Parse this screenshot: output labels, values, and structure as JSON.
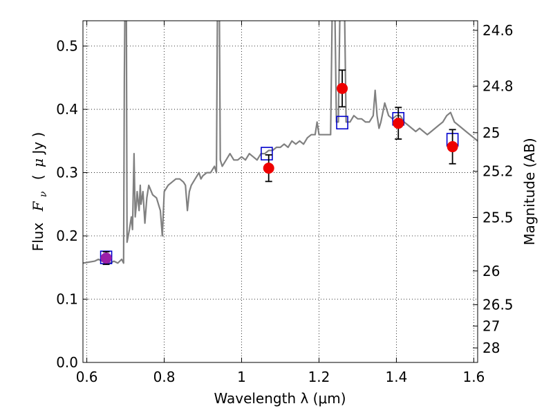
{
  "chart_data": {
    "type": "scatter",
    "xlabel": "Wavelength  λ (μm)",
    "ylabel_text": "Flux",
    "ylabel_math": "F",
    "ylabel_sub": "ν",
    "ylabel_unit_open": "(",
    "ylabel_unit_mu": "μ",
    "ylabel_unit": "Jy )",
    "y2label": "Magnitude (AB)",
    "xlim": [
      0.59,
      1.61
    ],
    "ylim": [
      0.0,
      0.54
    ],
    "grid": true,
    "x_ticks": [
      {
        "value": 0.6,
        "label": "0.6"
      },
      {
        "value": 0.8,
        "label": "0.8"
      },
      {
        "value": 1.0,
        "label": "1"
      },
      {
        "value": 1.2,
        "label": "1.2"
      },
      {
        "value": 1.4,
        "label": "1.4"
      },
      {
        "value": 1.6,
        "label": "1.6"
      }
    ],
    "y_ticks": [
      {
        "value": 0.0,
        "label": "0.0"
      },
      {
        "value": 0.1,
        "label": "0.1"
      },
      {
        "value": 0.2,
        "label": "0.2"
      },
      {
        "value": 0.3,
        "label": "0.3"
      },
      {
        "value": 0.4,
        "label": "0.4"
      },
      {
        "value": 0.5,
        "label": "0.5"
      }
    ],
    "y2_ticks": [
      {
        "mag": 24.6,
        "label": "24.6"
      },
      {
        "mag": 24.8,
        "label": "24.8"
      },
      {
        "mag": 25.0,
        "label": "25"
      },
      {
        "mag": 25.2,
        "label": "25.2"
      },
      {
        "mag": 25.5,
        "label": "25.5"
      },
      {
        "mag": 26.0,
        "label": "26"
      },
      {
        "mag": 26.5,
        "label": "26.5"
      },
      {
        "mag": 27.0,
        "label": "27"
      },
      {
        "mag": 28.0,
        "label": "28"
      }
    ],
    "template_spectrum": {
      "name": "model SED",
      "color": "#808080",
      "points": [
        [
          0.59,
          0.157
        ],
        [
          0.6,
          0.158
        ],
        [
          0.62,
          0.16
        ],
        [
          0.63,
          0.163
        ],
        [
          0.64,
          0.16
        ],
        [
          0.65,
          0.163
        ],
        [
          0.66,
          0.157
        ],
        [
          0.67,
          0.16
        ],
        [
          0.68,
          0.157
        ],
        [
          0.69,
          0.163
        ],
        [
          0.695,
          0.157
        ],
        [
          0.697,
          0.45
        ],
        [
          0.699,
          0.6
        ],
        [
          0.702,
          0.6
        ],
        [
          0.704,
          0.19
        ],
        [
          0.71,
          0.21
        ],
        [
          0.715,
          0.23
        ],
        [
          0.718,
          0.21
        ],
        [
          0.722,
          0.33
        ],
        [
          0.725,
          0.23
        ],
        [
          0.728,
          0.25
        ],
        [
          0.73,
          0.27
        ],
        [
          0.735,
          0.24
        ],
        [
          0.738,
          0.28
        ],
        [
          0.74,
          0.25
        ],
        [
          0.745,
          0.27
        ],
        [
          0.75,
          0.22
        ],
        [
          0.755,
          0.26
        ],
        [
          0.76,
          0.28
        ],
        [
          0.77,
          0.265
        ],
        [
          0.78,
          0.26
        ],
        [
          0.79,
          0.24
        ],
        [
          0.795,
          0.2
        ],
        [
          0.8,
          0.27
        ],
        [
          0.81,
          0.28
        ],
        [
          0.82,
          0.285
        ],
        [
          0.83,
          0.29
        ],
        [
          0.84,
          0.29
        ],
        [
          0.85,
          0.285
        ],
        [
          0.855,
          0.28
        ],
        [
          0.86,
          0.24
        ],
        [
          0.865,
          0.27
        ],
        [
          0.87,
          0.28
        ],
        [
          0.88,
          0.29
        ],
        [
          0.89,
          0.3
        ],
        [
          0.895,
          0.29
        ],
        [
          0.9,
          0.295
        ],
        [
          0.91,
          0.3
        ],
        [
          0.92,
          0.3
        ],
        [
          0.93,
          0.31
        ],
        [
          0.935,
          0.3
        ],
        [
          0.938,
          0.6
        ],
        [
          0.942,
          0.6
        ],
        [
          0.945,
          0.32
        ],
        [
          0.95,
          0.31
        ],
        [
          0.96,
          0.32
        ],
        [
          0.97,
          0.33
        ],
        [
          0.98,
          0.32
        ],
        [
          0.99,
          0.32
        ],
        [
          1.0,
          0.325
        ],
        [
          1.01,
          0.32
        ],
        [
          1.02,
          0.33
        ],
        [
          1.03,
          0.325
        ],
        [
          1.04,
          0.32
        ],
        [
          1.05,
          0.33
        ],
        [
          1.06,
          0.33
        ],
        [
          1.07,
          0.335
        ],
        [
          1.08,
          0.335
        ],
        [
          1.09,
          0.34
        ],
        [
          1.1,
          0.34
        ],
        [
          1.11,
          0.345
        ],
        [
          1.12,
          0.34
        ],
        [
          1.13,
          0.35
        ],
        [
          1.14,
          0.345
        ],
        [
          1.15,
          0.35
        ],
        [
          1.16,
          0.345
        ],
        [
          1.17,
          0.355
        ],
        [
          1.18,
          0.36
        ],
        [
          1.19,
          0.36
        ],
        [
          1.195,
          0.38
        ],
        [
          1.2,
          0.36
        ],
        [
          1.21,
          0.36
        ],
        [
          1.22,
          0.36
        ],
        [
          1.23,
          0.36
        ],
        [
          1.235,
          0.6
        ],
        [
          1.24,
          0.6
        ],
        [
          1.245,
          0.38
        ],
        [
          1.25,
          0.38
        ],
        [
          1.255,
          0.6
        ],
        [
          1.265,
          0.6
        ],
        [
          1.27,
          0.38
        ],
        [
          1.28,
          0.38
        ],
        [
          1.29,
          0.39
        ],
        [
          1.3,
          0.385
        ],
        [
          1.31,
          0.385
        ],
        [
          1.32,
          0.38
        ],
        [
          1.33,
          0.38
        ],
        [
          1.34,
          0.39
        ],
        [
          1.345,
          0.43
        ],
        [
          1.35,
          0.39
        ],
        [
          1.355,
          0.37
        ],
        [
          1.36,
          0.38
        ],
        [
          1.37,
          0.41
        ],
        [
          1.38,
          0.39
        ],
        [
          1.39,
          0.385
        ],
        [
          1.4,
          0.39
        ],
        [
          1.41,
          0.39
        ],
        [
          1.42,
          0.38
        ],
        [
          1.43,
          0.375
        ],
        [
          1.44,
          0.37
        ],
        [
          1.45,
          0.365
        ],
        [
          1.46,
          0.37
        ],
        [
          1.47,
          0.365
        ],
        [
          1.48,
          0.36
        ],
        [
          1.49,
          0.365
        ],
        [
          1.5,
          0.37
        ],
        [
          1.51,
          0.375
        ],
        [
          1.52,
          0.38
        ],
        [
          1.53,
          0.39
        ],
        [
          1.54,
          0.395
        ],
        [
          1.55,
          0.38
        ],
        [
          1.56,
          0.375
        ],
        [
          1.57,
          0.37
        ],
        [
          1.58,
          0.365
        ],
        [
          1.59,
          0.36
        ],
        [
          1.6,
          0.355
        ],
        [
          1.61,
          0.35
        ]
      ]
    },
    "model_photometry": {
      "name": "model band flux",
      "color": "#0000cc",
      "points": [
        {
          "x": 0.65,
          "y": 0.166
        },
        {
          "x": 1.065,
          "y": 0.33
        },
        {
          "x": 1.26,
          "y": 0.379
        },
        {
          "x": 1.405,
          "y": 0.385
        },
        {
          "x": 1.545,
          "y": 0.352
        }
      ]
    },
    "observed_photometry": {
      "name": "observed flux",
      "points": [
        {
          "x": 0.65,
          "y": 0.165,
          "err": 0.01,
          "color": "#9b1fa8"
        },
        {
          "x": 1.07,
          "y": 0.307,
          "err": 0.021,
          "color": "#ee0000"
        },
        {
          "x": 1.26,
          "y": 0.433,
          "err": 0.029,
          "color": "#ee0000"
        },
        {
          "x": 1.405,
          "y": 0.378,
          "err": 0.025,
          "color": "#ee0000"
        },
        {
          "x": 1.545,
          "y": 0.341,
          "err": 0.027,
          "color": "#ee0000"
        }
      ]
    }
  }
}
